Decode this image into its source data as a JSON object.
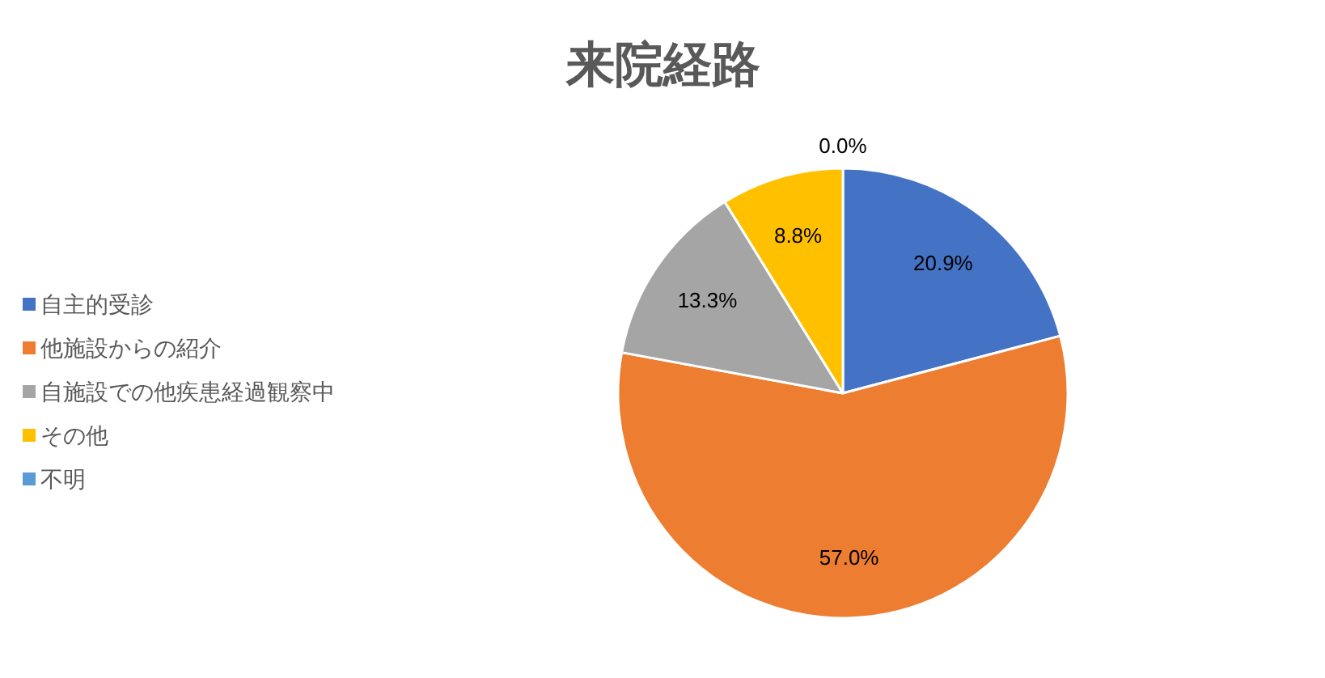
{
  "chart_data": {
    "type": "pie",
    "title": "来院経路",
    "categories": [
      "自主的受診",
      "他施設からの紹介",
      "自施設での他疾患経過観察中",
      "その他",
      "不明"
    ],
    "values": [
      20.9,
      57.0,
      13.3,
      8.8,
      0.0
    ],
    "colors": [
      "#4472c4",
      "#ed7d31",
      "#a5a5a5",
      "#ffc000",
      "#5b9bd5"
    ],
    "value_labels": [
      "20.9%",
      "57.0%",
      "13.3%",
      "8.8%",
      "0.0%"
    ],
    "legend": "left"
  }
}
